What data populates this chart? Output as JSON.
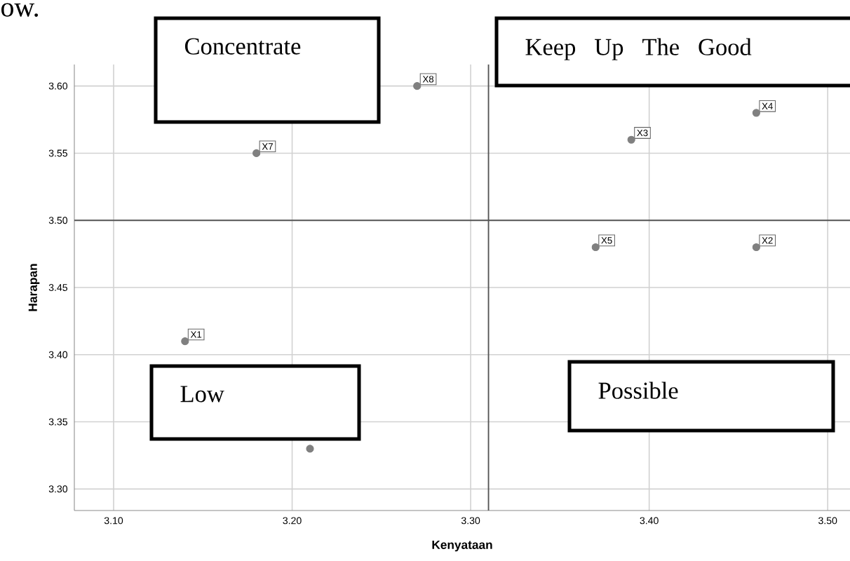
{
  "chart_data": {
    "type": "scatter",
    "xlabel": "Kenyataan",
    "ylabel": "Harapan",
    "x": [
      3.14,
      3.46,
      3.39,
      3.46,
      3.37,
      3.21,
      3.18,
      3.27
    ],
    "values": [
      3.41,
      3.48,
      3.56,
      3.58,
      3.48,
      3.33,
      3.55,
      3.6
    ],
    "color": "#808080",
    "marker": "circle",
    "grid": true,
    "xlim": [
      3.078,
      3.5125
    ],
    "ylim": [
      3.284,
      3.616
    ],
    "xticks": [
      {
        "value": 3.1,
        "label": "3.10"
      },
      {
        "value": 3.2,
        "label": "3.20"
      },
      {
        "value": 3.3,
        "label": "3.30"
      },
      {
        "value": 3.4,
        "label": "3.40"
      },
      {
        "value": 3.5,
        "label": "3.50"
      }
    ],
    "yticks": [
      {
        "value": 3.3,
        "label": "3.30"
      },
      {
        "value": 3.35,
        "label": "3.35"
      },
      {
        "value": 3.4,
        "label": "3.40"
      },
      {
        "value": 3.45,
        "label": "3.45"
      },
      {
        "value": 3.5,
        "label": "3.50"
      },
      {
        "value": 3.55,
        "label": "3.55"
      },
      {
        "value": 3.6,
        "label": "3.60"
      }
    ],
    "ref_lines": [
      {
        "axis": "x",
        "value": 3.31,
        "color": "#555555"
      },
      {
        "axis": "y",
        "value": 3.5,
        "color": "#555555"
      }
    ],
    "annotations": [
      "ow.",
      "Concentrate",
      "Keep Up The Good",
      "Low",
      "Possible",
      {
        "text": "X1",
        "x": 3.14,
        "y": 3.41
      },
      {
        "text": "X2",
        "x": 3.46,
        "y": 3.48
      },
      {
        "text": "X3",
        "x": 3.39,
        "y": 3.56
      },
      {
        "text": "X4",
        "x": 3.46,
        "y": 3.58
      },
      {
        "text": "X5",
        "x": 3.37,
        "y": 3.48
      },
      {
        "text": "X7",
        "x": 3.18,
        "y": 3.55
      },
      {
        "text": "X8",
        "x": 3.27,
        "y": 3.6
      }
    ]
  }
}
